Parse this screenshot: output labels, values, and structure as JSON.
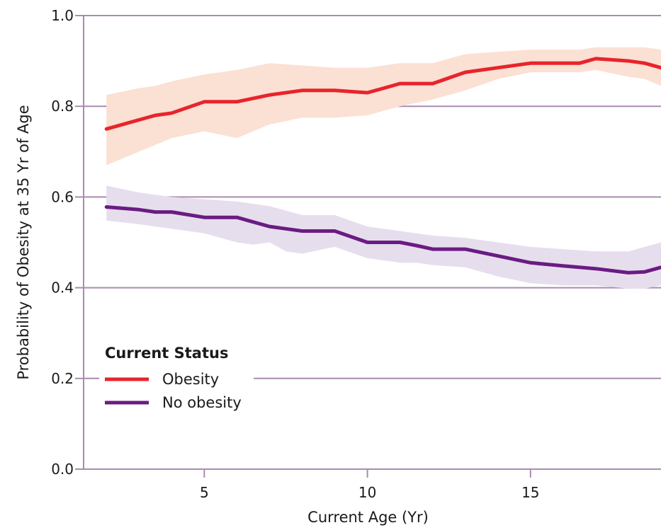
{
  "chart_data": {
    "type": "line",
    "title": "",
    "xlabel": "Current Age (Yr)",
    "ylabel": "Probability of Obesity at 35 Yr of Age",
    "xlim": [
      1.3,
      19
    ],
    "ylim": [
      0.0,
      1.0
    ],
    "xticks": [
      5,
      10,
      15
    ],
    "xtick_labels": [
      "5",
      "10",
      "15"
    ],
    "yticks": [
      0.0,
      0.2,
      0.4,
      0.6,
      0.8,
      1.0
    ],
    "ytick_labels": [
      "0.0",
      "0.2",
      "0.4",
      "0.6",
      "0.8",
      "1.0"
    ],
    "grid": "horizontal",
    "legend": {
      "title": "Current Status",
      "placement": "lower-left",
      "entries": [
        "Obesity",
        "No obesity"
      ]
    },
    "series": [
      {
        "name": "Obesity",
        "color": "#e8242b",
        "band_color": "#fbe0d4",
        "x": [
          2,
          3,
          3.5,
          4,
          5,
          6,
          7,
          8,
          9,
          10,
          10.5,
          11,
          12,
          13,
          14,
          15,
          16,
          16.5,
          17,
          18,
          18.5,
          19
        ],
        "values": [
          0.75,
          0.77,
          0.78,
          0.785,
          0.81,
          0.81,
          0.825,
          0.835,
          0.835,
          0.83,
          0.84,
          0.85,
          0.85,
          0.875,
          0.885,
          0.895,
          0.895,
          0.895,
          0.905,
          0.9,
          0.895,
          0.885
        ],
        "lower": [
          0.67,
          0.7,
          0.715,
          0.73,
          0.745,
          0.73,
          0.76,
          0.775,
          0.775,
          0.78,
          0.79,
          0.8,
          0.815,
          0.835,
          0.86,
          0.875,
          0.875,
          0.875,
          0.88,
          0.865,
          0.86,
          0.845
        ],
        "upper": [
          0.825,
          0.84,
          0.845,
          0.855,
          0.87,
          0.88,
          0.895,
          0.89,
          0.885,
          0.885,
          0.89,
          0.895,
          0.895,
          0.915,
          0.92,
          0.925,
          0.925,
          0.925,
          0.93,
          0.93,
          0.93,
          0.925
        ]
      },
      {
        "name": "No obesity",
        "color": "#6b1b83",
        "band_color": "#e6deed",
        "x": [
          2,
          3,
          3.5,
          4,
          5,
          6,
          6.5,
          7,
          7.5,
          8,
          9,
          10,
          11,
          11.5,
          12,
          13,
          14,
          15,
          16,
          17,
          18,
          18.5,
          19
        ],
        "values": [
          0.578,
          0.572,
          0.567,
          0.567,
          0.555,
          0.555,
          0.545,
          0.535,
          0.53,
          0.525,
          0.525,
          0.5,
          0.5,
          0.493,
          0.485,
          0.485,
          0.47,
          0.455,
          0.448,
          0.442,
          0.433,
          0.435,
          0.445
        ],
        "lower": [
          0.548,
          0.54,
          0.535,
          0.53,
          0.52,
          0.5,
          0.495,
          0.5,
          0.48,
          0.475,
          0.49,
          0.465,
          0.455,
          0.455,
          0.45,
          0.445,
          0.425,
          0.41,
          0.405,
          0.405,
          0.398,
          0.398,
          0.405
        ],
        "upper": [
          0.625,
          0.61,
          0.605,
          0.6,
          0.595,
          0.59,
          0.585,
          0.58,
          0.57,
          0.56,
          0.56,
          0.535,
          0.525,
          0.52,
          0.515,
          0.51,
          0.5,
          0.49,
          0.485,
          0.48,
          0.48,
          0.49,
          0.5
        ]
      }
    ]
  }
}
